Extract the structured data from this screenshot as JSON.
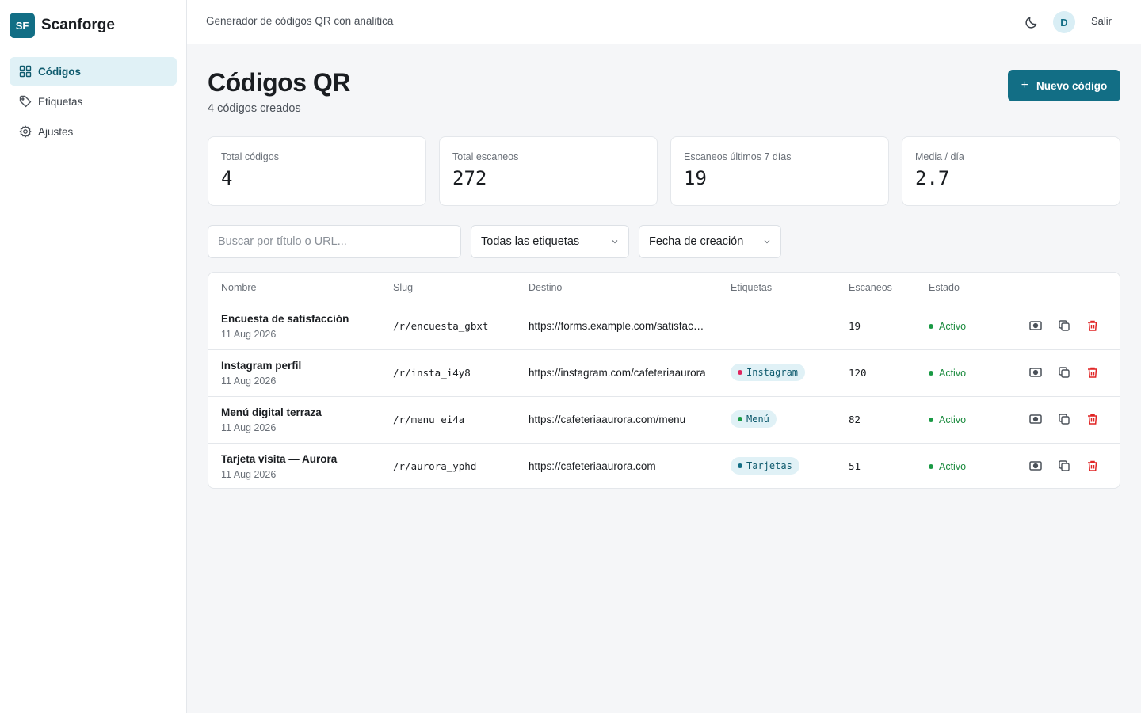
{
  "brand": {
    "logo": "SF",
    "name": "Scanforge"
  },
  "sidebar": {
    "items": [
      {
        "label": "Códigos",
        "icon": "grid-icon",
        "active": true
      },
      {
        "label": "Etiquetas",
        "icon": "tag-icon",
        "active": false
      },
      {
        "label": "Ajustes",
        "icon": "gear-icon",
        "active": false
      }
    ]
  },
  "header": {
    "subtitle": "Generador de códigos QR con analitica",
    "avatar_initial": "D",
    "logout_label": "Salir",
    "theme_icon": "moon-icon"
  },
  "page": {
    "title": "Códigos QR",
    "subtitle": "4 códigos creados",
    "new_button_label": "Nuevo código"
  },
  "stats": [
    {
      "label": "Total códigos",
      "value": "4"
    },
    {
      "label": "Total escaneos",
      "value": "272"
    },
    {
      "label": "Escaneos últimos 7 días",
      "value": "19"
    },
    {
      "label": "Media / día",
      "value": "2.7"
    }
  ],
  "filters": {
    "search_placeholder": "Buscar por título o URL...",
    "tags_select": "Todas las etiquetas",
    "sort_select": "Fecha de creación"
  },
  "table": {
    "columns": [
      "Nombre",
      "Slug",
      "Destino",
      "Etiquetas",
      "Escaneos",
      "Estado"
    ],
    "rows": [
      {
        "name": "Encuesta de satisfacción",
        "date": "11 Aug 2026",
        "slug": "/r/encuesta_gbxt",
        "destination": "https://forms.example.com/satisfaccion",
        "tag": "",
        "tag_color": "",
        "scans": "19",
        "status": "Activo"
      },
      {
        "name": "Instagram perfil",
        "date": "11 Aug 2026",
        "slug": "/r/insta_i4y8",
        "destination": "https://instagram.com/cafeteriaaurora",
        "tag": "Instagram",
        "tag_color": "#e0245e",
        "scans": "120",
        "status": "Activo"
      },
      {
        "name": "Menú digital terraza",
        "date": "11 Aug 2026",
        "slug": "/r/menu_ei4a",
        "destination": "https://cafeteriaaurora.com/menu",
        "tag": "Menú",
        "tag_color": "#1a9a45",
        "scans": "82",
        "status": "Activo"
      },
      {
        "name": "Tarjeta visita — Aurora",
        "date": "11 Aug 2026",
        "slug": "/r/aurora_yphd",
        "destination": "https://cafeteriaaurora.com",
        "tag": "Tarjetas",
        "tag_color": "#126e85",
        "scans": "51",
        "status": "Activo"
      }
    ]
  },
  "colors": {
    "accent": "#126e85",
    "active_status": "#1a8a3d",
    "delete": "#e02424"
  }
}
